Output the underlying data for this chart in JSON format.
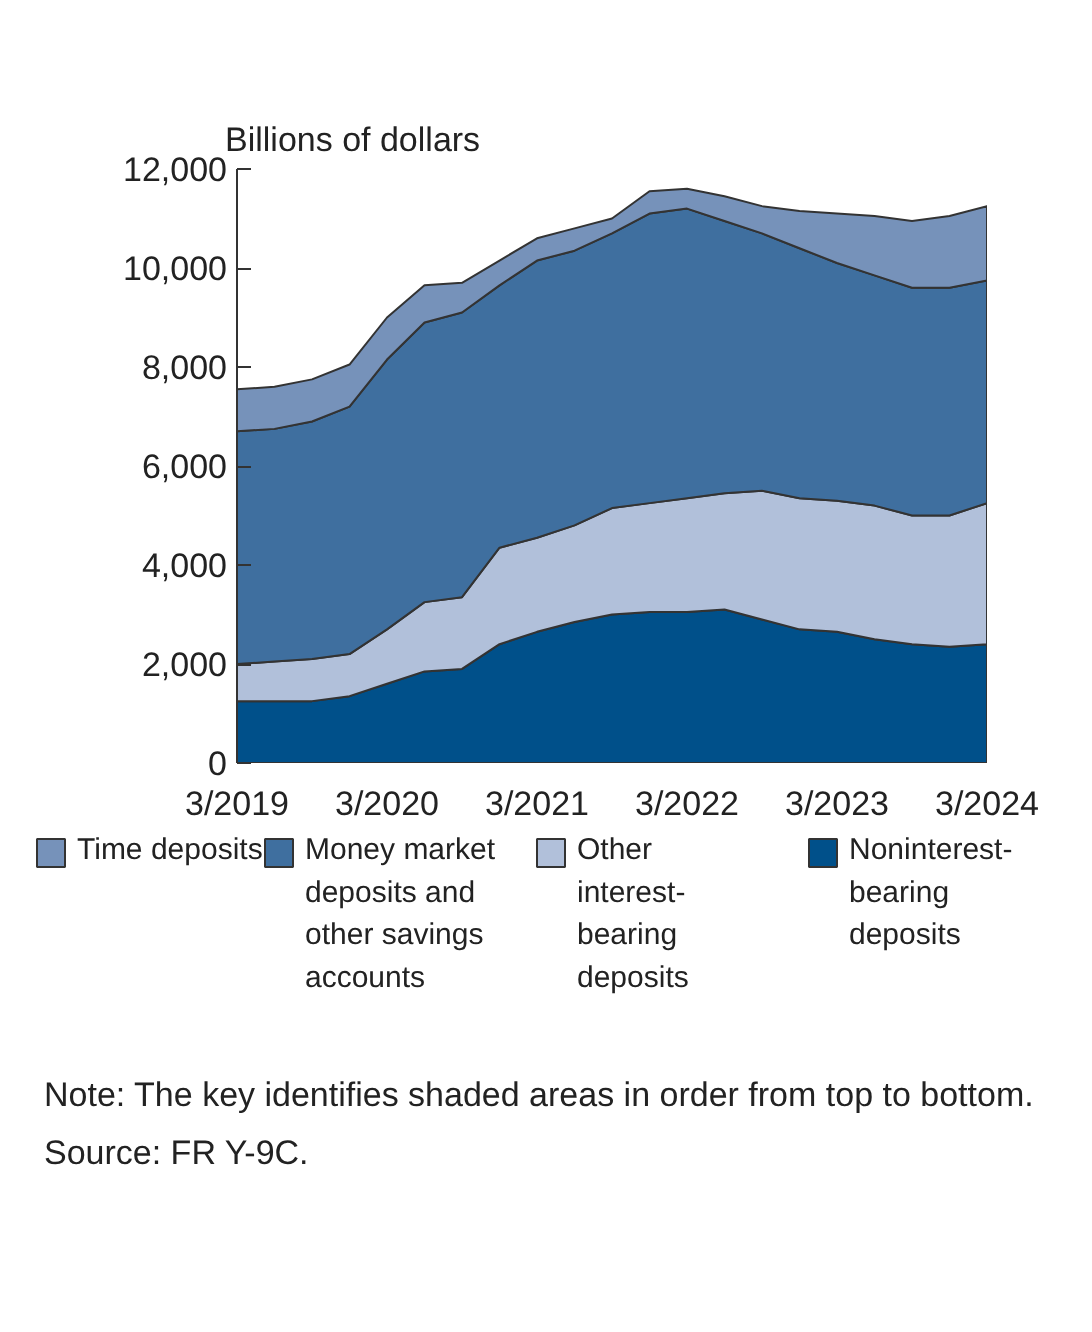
{
  "chart_data": {
    "type": "area",
    "stacked": true,
    "ylabel": "Billions of dollars",
    "x": [
      "2019-03",
      "2019-06",
      "2019-09",
      "2019-12",
      "2020-03",
      "2020-06",
      "2020-09",
      "2020-12",
      "2021-03",
      "2021-06",
      "2021-09",
      "2021-12",
      "2022-03",
      "2022-06",
      "2022-09",
      "2022-12",
      "2023-03",
      "2023-06",
      "2023-09",
      "2023-12",
      "2024-03"
    ],
    "series": [
      {
        "name": "Noninterest-bearing deposits",
        "color": "#00508a",
        "values": [
          1250,
          1250,
          1250,
          1350,
          1600,
          1850,
          1900,
          2400,
          2650,
          2850,
          3000,
          3050,
          3050,
          3100,
          2900,
          2700,
          2650,
          2500,
          2400,
          2350,
          2400
        ]
      },
      {
        "name": "Other interest-bearing deposits",
        "color": "#b1c0da",
        "values": [
          750,
          800,
          850,
          850,
          1100,
          1400,
          1450,
          1950,
          1900,
          1950,
          2150,
          2200,
          2300,
          2350,
          2600,
          2650,
          2650,
          2700,
          2600,
          2650,
          2850
        ]
      },
      {
        "name": "Money market deposits and other savings accounts",
        "color": "#3f6f9f",
        "values": [
          4700,
          4700,
          4800,
          5000,
          5450,
          5650,
          5750,
          5300,
          5600,
          5550,
          5550,
          5850,
          5850,
          5500,
          5200,
          5050,
          4800,
          4650,
          4600,
          4600,
          4500
        ]
      },
      {
        "name": "Time deposits",
        "color": "#7692ba",
        "values": [
          850,
          850,
          850,
          850,
          850,
          750,
          600,
          500,
          450,
          450,
          300,
          450,
          400,
          500,
          550,
          750,
          1000,
          1200,
          1350,
          1450,
          1500
        ]
      }
    ],
    "xlim": [
      "2019-03",
      "2024-03"
    ],
    "xticks": [
      {
        "value": "2019-03",
        "label": "3/2019"
      },
      {
        "value": "2020-03",
        "label": "3/2020"
      },
      {
        "value": "2021-03",
        "label": "3/2021"
      },
      {
        "value": "2022-03",
        "label": "3/2022"
      },
      {
        "value": "2023-03",
        "label": "3/2023"
      },
      {
        "value": "2024-03",
        "label": "3/2024"
      }
    ],
    "ylim": [
      0,
      12000
    ],
    "yticks": [
      {
        "value": 0,
        "label": "0"
      },
      {
        "value": 2000,
        "label": "2,000"
      },
      {
        "value": 4000,
        "label": "4,000"
      },
      {
        "value": 6000,
        "label": "6,000"
      },
      {
        "value": 8000,
        "label": "8,000"
      },
      {
        "value": 10000,
        "label": "10,000"
      },
      {
        "value": 12000,
        "label": "12,000"
      }
    ],
    "grid": false,
    "legend": "bottom",
    "annotations": [
      "Note: The key identifies shaded areas in order from top to bottom.",
      "Source: FR Y-9C."
    ]
  }
}
